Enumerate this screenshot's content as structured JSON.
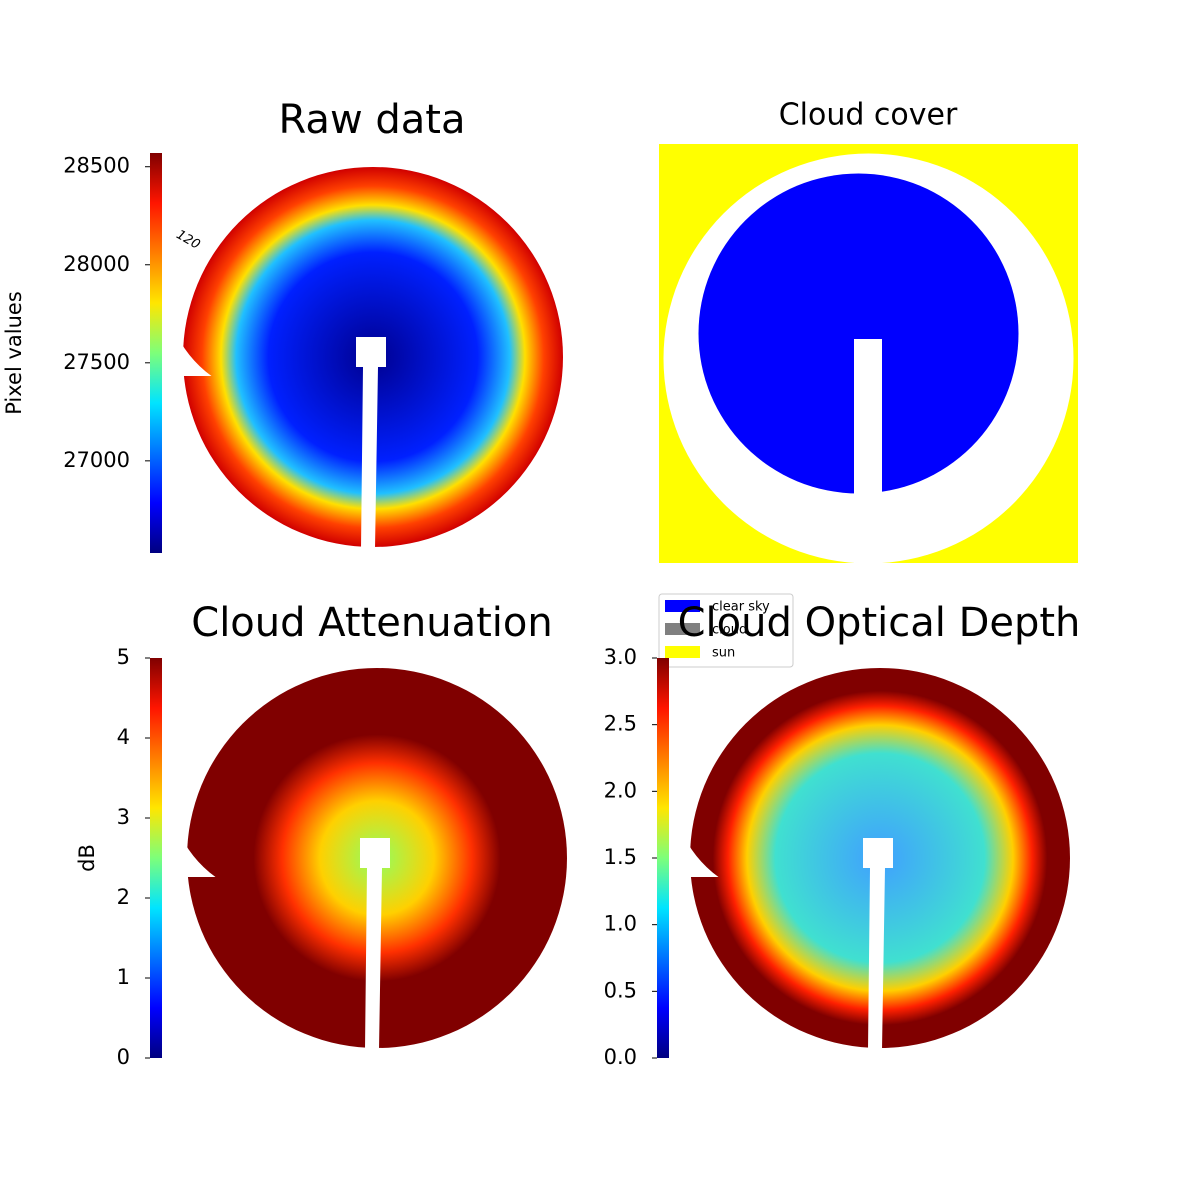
{
  "chart_data": [
    {
      "type": "image",
      "title": "Raw data",
      "colormap": "jet",
      "colorbar_label": "Pixel values",
      "ylim": [
        26530,
        28570
      ],
      "yticks": [
        27000,
        27500,
        28000,
        28500
      ],
      "annotations": [
        "120"
      ]
    },
    {
      "type": "image",
      "title": "Cloud cover",
      "series": [
        {
          "name": "clear sky",
          "color": "#0000ff"
        },
        {
          "name": "cloud",
          "color": "#808080"
        },
        {
          "name": "sun",
          "color": "#ffff00"
        }
      ]
    },
    {
      "type": "image",
      "title": "Cloud Attenuation",
      "colormap": "jet",
      "colorbar_label": "dB",
      "ylim": [
        0,
        5
      ],
      "yticks": [
        0,
        1,
        2,
        3,
        4,
        5
      ]
    },
    {
      "type": "image",
      "title": "Cloud Optical Depth",
      "colormap": "jet",
      "ylim": [
        0,
        3
      ],
      "yticks": [
        {
          "value": 0,
          "label": "0.0"
        },
        {
          "value": 0.5,
          "label": "0.5"
        },
        {
          "value": 1,
          "label": "1.0"
        },
        {
          "value": 1.5,
          "label": "1.5"
        },
        {
          "value": 2,
          "label": "2.0"
        },
        {
          "value": 2.5,
          "label": "2.5"
        },
        {
          "value": 3,
          "label": "3.0"
        }
      ]
    }
  ]
}
